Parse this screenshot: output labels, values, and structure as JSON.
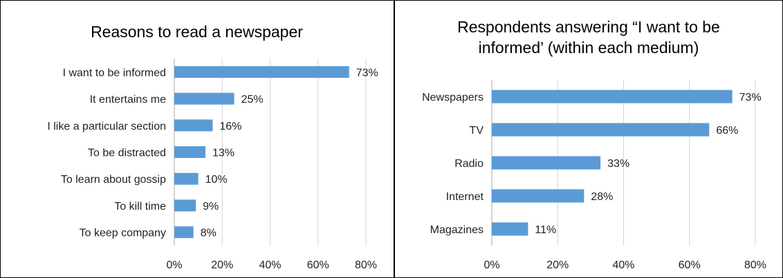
{
  "chart_data": [
    {
      "type": "bar",
      "orientation": "horizontal",
      "title": "Reasons to read a newspaper",
      "categories": [
        "I want to be informed",
        "It entertains me",
        "I like a particular section",
        "To be distracted",
        "To learn about gossip",
        "To kill time",
        "To keep company"
      ],
      "values": [
        73,
        25,
        16,
        13,
        10,
        9,
        8
      ],
      "value_labels": [
        "73%",
        "25%",
        "16%",
        "13%",
        "10%",
        "9%",
        "8%"
      ],
      "xlim": [
        0,
        80
      ],
      "x_ticks": [
        "0%",
        "20%",
        "40%",
        "60%",
        "80%"
      ],
      "x_tick_values": [
        0,
        20,
        40,
        60,
        80
      ],
      "grid": "vertical",
      "bar_color": "#5b9bd5"
    },
    {
      "type": "bar",
      "orientation": "horizontal",
      "title": "Respondents answering “I want to be informed’ (within each medium)",
      "title_lines": [
        "Respondents answering “I want to be",
        "informed’ (within each medium)"
      ],
      "categories": [
        "Newspapers",
        "TV",
        "Radio",
        "Internet",
        "Magazines"
      ],
      "values": [
        73,
        66,
        33,
        28,
        11
      ],
      "value_labels": [
        "73%",
        "66%",
        "33%",
        "28%",
        "11%"
      ],
      "xlim": [
        0,
        80
      ],
      "x_ticks": [
        "0%",
        "20%",
        "40%",
        "60%",
        "80%"
      ],
      "x_tick_values": [
        0,
        20,
        40,
        60,
        80
      ],
      "grid": "vertical",
      "bar_color": "#5b9bd5"
    }
  ]
}
